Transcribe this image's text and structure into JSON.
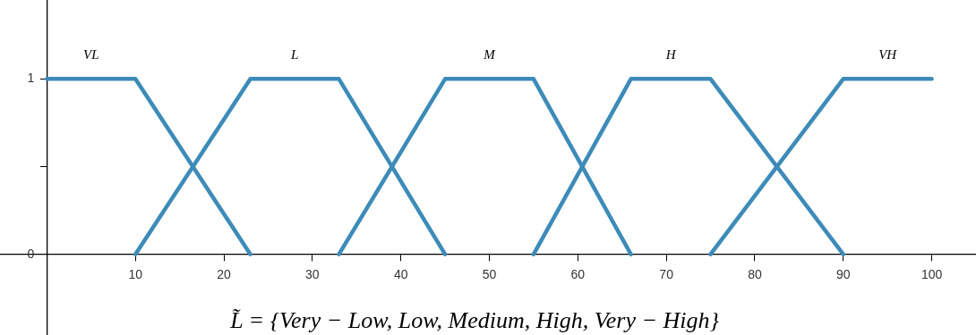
{
  "chart_data": {
    "type": "line",
    "xlim": [
      -5.3,
      105
    ],
    "ylim": [
      -0.46,
      1.45
    ],
    "xticks": [
      {
        "value": 0,
        "label": null
      },
      10,
      20,
      30,
      40,
      50,
      60,
      70,
      80,
      90,
      100
    ],
    "yticks": [
      0,
      {
        "value": 0.5,
        "label": null
      },
      1
    ],
    "grid": false,
    "legend": false,
    "marker": "none",
    "line_style": "solid",
    "annotations": [
      "L̃ = {Very − Low, Low, Medium, High, Very − High}"
    ],
    "series": [
      {
        "name": "VL",
        "color": "#3d8bb8",
        "x": [
          0,
          10,
          23
        ],
        "values": [
          1,
          1,
          0
        ]
      },
      {
        "name": "L",
        "color": "#3d8bb8",
        "x": [
          10,
          23,
          33,
          45
        ],
        "values": [
          0,
          1,
          1,
          0
        ]
      },
      {
        "name": "M",
        "color": "#3d8bb8",
        "x": [
          33,
          45,
          55,
          66
        ],
        "values": [
          0,
          1,
          1,
          0
        ]
      },
      {
        "name": "H",
        "color": "#3d8bb8",
        "x": [
          55,
          66,
          75,
          90
        ],
        "values": [
          0,
          1,
          1,
          0
        ]
      },
      {
        "name": "VH",
        "color": "#3d8bb8",
        "x": [
          75,
          90,
          100
        ],
        "values": [
          0,
          1,
          1
        ]
      }
    ]
  }
}
